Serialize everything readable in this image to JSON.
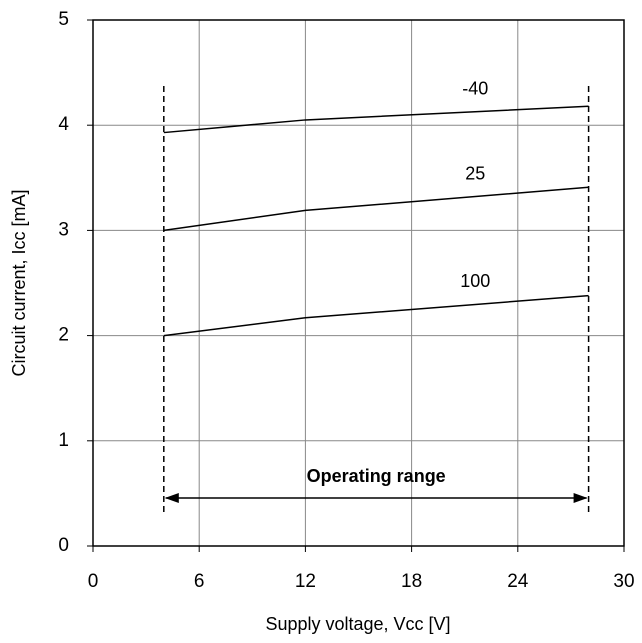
{
  "chart_data": {
    "type": "line",
    "x_label": "Supply voltage, Vcc [V]",
    "y_label": "Circuit current, Icc [mA]",
    "x": [
      4,
      12,
      28
    ],
    "series": [
      {
        "name": "-40",
        "color": "#000000",
        "values": [
          3.93,
          4.05,
          4.18
        ]
      },
      {
        "name": "25",
        "color": "#000000",
        "values": [
          3.0,
          3.19,
          3.41
        ]
      },
      {
        "name": "100",
        "color": "#000000",
        "values": [
          2.0,
          2.17,
          2.38
        ]
      }
    ],
    "xlim": [
      0,
      30
    ],
    "xticks": [
      0,
      6,
      12,
      18,
      24,
      30
    ],
    "ylim": [
      0,
      5
    ],
    "yticks": [
      0,
      1,
      2,
      3,
      4,
      5
    ],
    "grid": true,
    "annotation": {
      "text": "Operating range",
      "range": [
        4,
        28
      ]
    }
  }
}
